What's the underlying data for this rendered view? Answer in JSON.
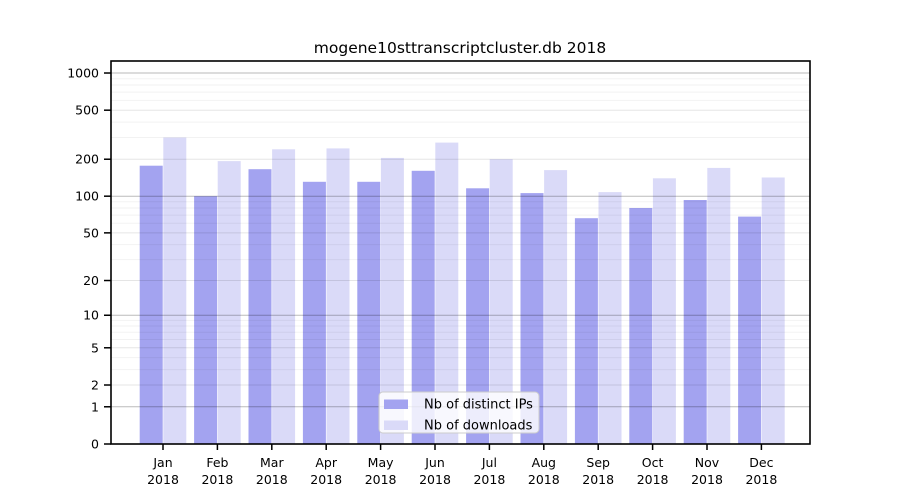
{
  "chart_data": {
    "type": "bar",
    "title": "mogene10sttranscriptcluster.db 2018",
    "year_label": "2018",
    "categories": [
      "Jan",
      "Feb",
      "Mar",
      "Apr",
      "May",
      "Jun",
      "Jul",
      "Aug",
      "Sep",
      "Oct",
      "Nov",
      "Dec"
    ],
    "series": [
      {
        "name": "Nb of distinct IPs",
        "color": "#a3a3f0",
        "values": [
          177,
          100,
          166,
          131,
          131,
          161,
          116,
          106,
          66,
          80,
          93,
          68
        ]
      },
      {
        "name": "Nb of downloads",
        "color": "#dadaf8",
        "values": [
          300,
          193,
          241,
          245,
          205,
          273,
          200,
          163,
          108,
          140,
          170,
          142
        ]
      }
    ],
    "yscale": "log1p",
    "yticks": [
      0,
      1,
      2,
      5,
      10,
      20,
      50,
      100,
      200,
      500,
      1000
    ],
    "ylim": [
      0,
      1251
    ],
    "grid": "horizontal-log-minor",
    "legend_position": "bottom-center",
    "colors": {
      "spine": "#000000",
      "grid_major": "rgba(0,0,0,0.27)",
      "grid_sub": "rgba(0,0,0,0.10)",
      "grid_minor": "rgba(0,0,0,0.05)",
      "legend_bg": "rgba(255,255,255,0.8)",
      "legend_border": "#cccccc"
    }
  }
}
